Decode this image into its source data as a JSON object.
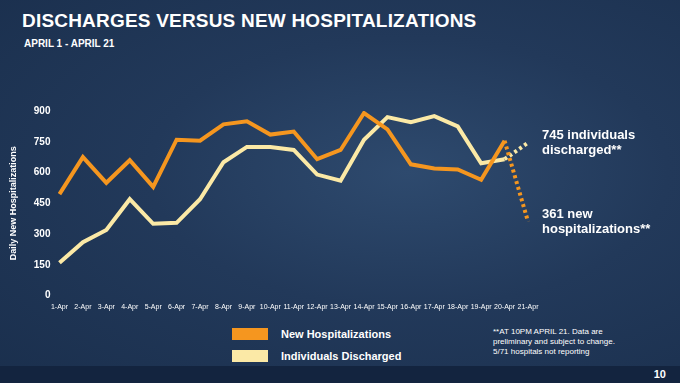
{
  "chart_data": {
    "type": "line",
    "title": "DISCHARGES VERSUS NEW HOSPITALIZATIONS",
    "subtitle": "APRIL 1 - APRIL 21",
    "y_label": "Daily New Hospitalizations",
    "categories": [
      "1-Apr",
      "2-Apr",
      "3-Apr",
      "4-Apr",
      "5-Apr",
      "6-Apr",
      "7-Apr",
      "8-Apr",
      "9-Apr",
      "10-Apr",
      "11-Apr",
      "12-Apr",
      "13-Apr",
      "14-Apr",
      "15-Apr",
      "16-Apr",
      "17-Apr",
      "18-Apr",
      "19-Apr",
      "20-Apr",
      "21-Apr"
    ],
    "series": [
      {
        "name": "New Hospitalizations",
        "color": "#f5961f",
        "values": [
          495,
          675,
          550,
          660,
          530,
          760,
          755,
          835,
          850,
          785,
          800,
          665,
          710,
          890,
          810,
          640,
          620,
          615,
          565,
          755,
          361
        ],
        "annotation": "361 new hospitalizations**"
      },
      {
        "name": "Individuals Discharged",
        "color": "#fbe9a6",
        "values": [
          160,
          260,
          320,
          470,
          350,
          355,
          470,
          650,
          725,
          725,
          710,
          590,
          560,
          760,
          870,
          845,
          875,
          825,
          645,
          665,
          745
        ],
        "annotation": "745 individuals discharged**"
      }
    ],
    "ylim": [
      0,
      900
    ],
    "yticks": [
      0,
      150,
      300,
      450,
      600,
      750,
      900
    ],
    "grid": false,
    "legend": "bottom",
    "footnote": [
      "**AT 10PM APRIL 21. Data are",
      "preliminary and subject to change.",
      "5/71 hospitals not reporting"
    ],
    "page_number": "10"
  }
}
